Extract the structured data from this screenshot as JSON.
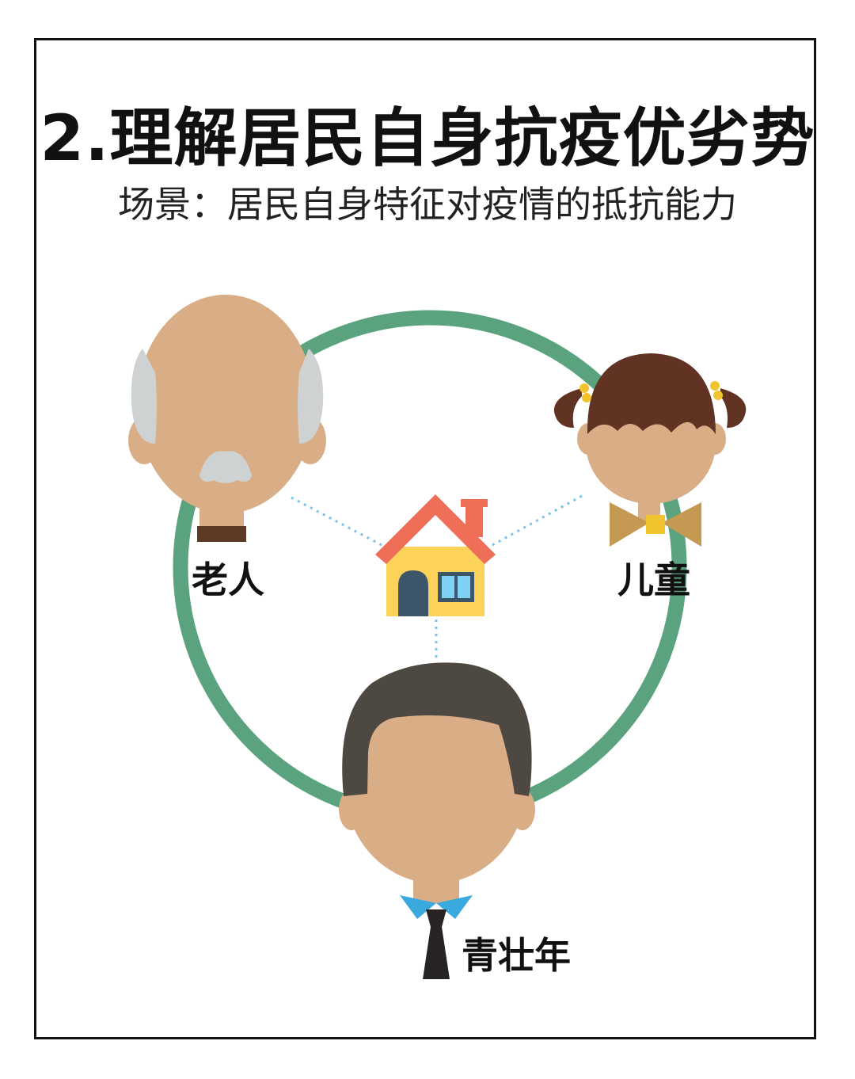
{
  "title": "2.理解居民自身抗疫优劣势",
  "subtitle": "场景：居民自身特征对疫情的抵抗能力",
  "labels": {
    "elder": "老人",
    "child": "儿童",
    "adult": "青壮年"
  },
  "colors": {
    "ring": "#5aa37e",
    "skin": "#d9ae86",
    "connector": "#7ec3e6",
    "roof": "#ef6e58",
    "house_wall": "#fdd25b",
    "door": "#3c5569",
    "window": "#7fd0f3",
    "child_hair": "#613322",
    "adult_hair": "#4e4842",
    "elder_hair": "#cfd2d3",
    "collar": "#3aa9de",
    "tie": "#272423",
    "bow": "#c49a53",
    "bow_knot": "#f1c32f"
  },
  "icons": [
    "elder-avatar-icon",
    "child-avatar-icon",
    "adult-avatar-icon",
    "house-icon"
  ]
}
